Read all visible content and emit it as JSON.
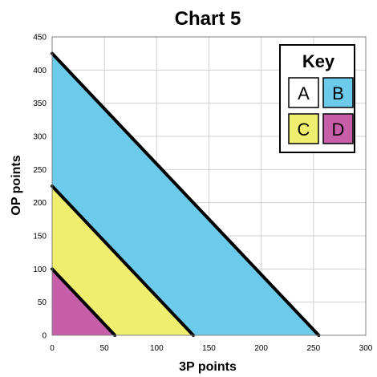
{
  "chart_data": {
    "type": "area",
    "title": "Chart 5",
    "xlabel": "3P points",
    "ylabel": "OP points",
    "xlim": [
      0,
      300
    ],
    "ylim": [
      0,
      450
    ],
    "x_ticks": [
      0,
      50,
      100,
      150,
      200,
      250,
      300
    ],
    "y_ticks": [
      0,
      50,
      100,
      150,
      200,
      250,
      300,
      350,
      400,
      450
    ],
    "grid": true,
    "legend_placement": "top-right",
    "boundaries": [
      {
        "x_intercept": 60,
        "y_intercept": 100
      },
      {
        "x_intercept": 135,
        "y_intercept": 225
      },
      {
        "x_intercept": 255,
        "y_intercept": 425
      }
    ],
    "regions": [
      {
        "key": "D",
        "color": "#c65ea8"
      },
      {
        "key": "C",
        "color": "#f0ee6e"
      },
      {
        "key": "B",
        "color": "#6ccbea"
      },
      {
        "key": "A",
        "color": "#ffffff"
      }
    ],
    "legend": {
      "title": "Key",
      "entries": [
        {
          "label": "A",
          "color": "#ffffff"
        },
        {
          "label": "B",
          "color": "#6ccbea"
        },
        {
          "label": "C",
          "color": "#f0ee6e"
        },
        {
          "label": "D",
          "color": "#c65ea8"
        }
      ]
    }
  }
}
